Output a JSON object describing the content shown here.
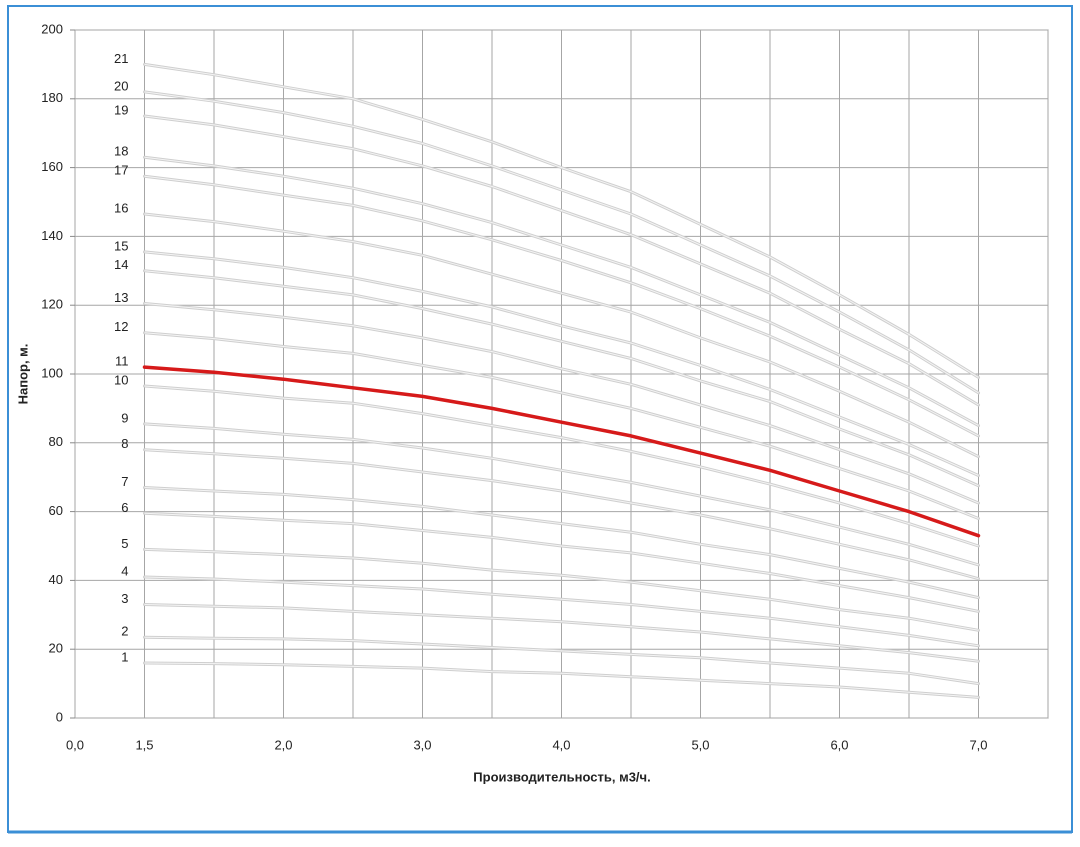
{
  "chart_data": {
    "type": "line",
    "x_label": "Производительность, м3/ч.",
    "y_label": "Напор, м.",
    "categories": [
      "0,0",
      "1,5",
      null,
      "2,0",
      null,
      "3,0",
      null,
      "4,0",
      null,
      "5,0",
      null,
      "6,0",
      null,
      "7,0",
      null
    ],
    "ylim": [
      0,
      200
    ],
    "yticks": [
      0,
      20,
      40,
      60,
      80,
      100,
      120,
      140,
      160,
      180,
      200
    ],
    "grid": true,
    "series": [
      {
        "name": "1",
        "color": "#cfcfcf",
        "values": [
          null,
          16,
          15.8,
          15.5,
          15,
          14.5,
          13.5,
          13,
          12,
          11,
          10,
          9,
          7.5,
          6,
          null
        ]
      },
      {
        "name": "2",
        "color": "#cfcfcf",
        "values": [
          null,
          23.5,
          23.2,
          23,
          22.5,
          21.5,
          20.5,
          19.5,
          18.5,
          17.5,
          16,
          14.5,
          13,
          10,
          null
        ]
      },
      {
        "name": "3",
        "color": "#cfcfcf",
        "values": [
          null,
          33,
          32.5,
          32,
          31,
          30,
          29,
          28,
          26.5,
          25,
          23,
          21,
          19,
          16.5,
          null
        ]
      },
      {
        "name": "4",
        "color": "#cfcfcf",
        "values": [
          null,
          41,
          40.4,
          39.5,
          38.5,
          37.5,
          36,
          34.5,
          33,
          31,
          29,
          26.5,
          24,
          21,
          null
        ]
      },
      {
        "name": "5",
        "color": "#cfcfcf",
        "values": [
          null,
          49,
          48.3,
          47.5,
          46.5,
          45,
          43,
          41.5,
          39.5,
          37,
          34.5,
          31.5,
          29,
          25.5,
          null
        ]
      },
      {
        "name": "6",
        "color": "#cfcfcf",
        "values": [
          null,
          59.5,
          58.6,
          57.5,
          56.5,
          54.5,
          52.5,
          50,
          48,
          45,
          42,
          38.5,
          35,
          31,
          null
        ]
      },
      {
        "name": "7",
        "color": "#cfcfcf",
        "values": [
          null,
          67,
          66,
          65,
          63.5,
          61.5,
          59,
          56.5,
          54,
          50.5,
          47.5,
          43.5,
          39.5,
          35,
          null
        ]
      },
      {
        "name": "8",
        "color": "#cfcfcf",
        "values": [
          null,
          78,
          76.8,
          75.5,
          74,
          71.5,
          69,
          66,
          62.5,
          59,
          55,
          50.5,
          46,
          40.5,
          null
        ]
      },
      {
        "name": "9",
        "color": "#cfcfcf",
        "values": [
          null,
          85.5,
          84.2,
          82.5,
          81,
          78.5,
          75.5,
          72,
          68.5,
          64.5,
          60.5,
          55.5,
          50.5,
          44.5,
          null
        ]
      },
      {
        "name": "10",
        "color": "#cfcfcf",
        "values": [
          null,
          96.5,
          95,
          93,
          91.5,
          88.5,
          85,
          81.5,
          77.5,
          73,
          68,
          62.5,
          56.5,
          50,
          null
        ]
      },
      {
        "name": "11",
        "color": "#d61a1a",
        "values": [
          null,
          102,
          100.5,
          98.5,
          96,
          93.5,
          90,
          86,
          82,
          77,
          72,
          66,
          60,
          53,
          null
        ]
      },
      {
        "name": "12",
        "color": "#cfcfcf",
        "values": [
          null,
          112,
          110.3,
          108,
          106,
          102.5,
          99,
          94.5,
          90,
          84.5,
          79,
          72.5,
          66,
          58,
          null
        ]
      },
      {
        "name": "13",
        "color": "#cfcfcf",
        "values": [
          null,
          120.5,
          118.7,
          116.5,
          114,
          110.5,
          106.5,
          101.5,
          97,
          91,
          85,
          78,
          71,
          62.5,
          null
        ]
      },
      {
        "name": "14",
        "color": "#cfcfcf",
        "values": [
          null,
          130,
          128,
          125.5,
          123,
          119,
          114.5,
          109.5,
          104.5,
          98,
          92,
          84,
          76.5,
          67.5,
          null
        ]
      },
      {
        "name": "15",
        "color": "#cfcfcf",
        "values": [
          null,
          135.5,
          133.5,
          131,
          128,
          124,
          119.5,
          114,
          109,
          102.5,
          95.5,
          87.5,
          79.5,
          70.5,
          null
        ]
      },
      {
        "name": "16",
        "color": "#cfcfcf",
        "values": [
          null,
          146.5,
          144.3,
          141.5,
          138.5,
          134.5,
          129,
          123.5,
          118,
          110.5,
          103.5,
          95,
          86,
          76,
          null
        ]
      },
      {
        "name": "17",
        "color": "#cfcfcf",
        "values": [
          null,
          157.5,
          155,
          152,
          149,
          144.5,
          139,
          133,
          126.5,
          119,
          111,
          102,
          92.5,
          82,
          null
        ]
      },
      {
        "name": "18",
        "color": "#cfcfcf",
        "values": [
          null,
          163,
          160.5,
          157.5,
          154,
          149.5,
          144,
          137.5,
          131,
          123,
          115,
          105.5,
          96,
          85,
          null
        ]
      },
      {
        "name": "19",
        "color": "#cfcfcf",
        "values": [
          null,
          175,
          172.4,
          169,
          165.5,
          160.5,
          154.5,
          147.5,
          140.5,
          132,
          123.5,
          113,
          103,
          91,
          null
        ]
      },
      {
        "name": "20",
        "color": "#cfcfcf",
        "values": [
          null,
          182,
          179.3,
          176,
          172,
          167,
          160.5,
          153.5,
          146.5,
          137.5,
          128.5,
          118,
          107,
          94.5,
          null
        ]
      },
      {
        "name": "21",
        "color": "#cfcfcf",
        "values": [
          null,
          190,
          187,
          183.5,
          180,
          174,
          167.5,
          160,
          153,
          143.5,
          134,
          123,
          111.5,
          99,
          null
        ]
      }
    ]
  }
}
